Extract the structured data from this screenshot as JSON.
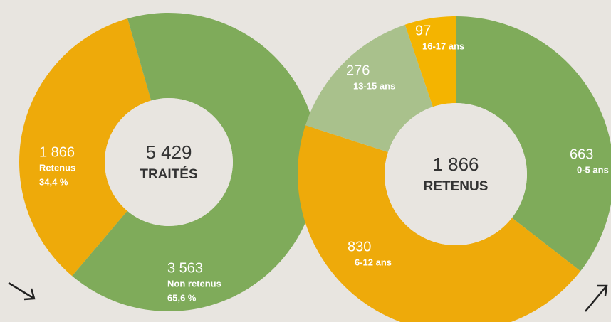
{
  "chart_data": [
    {
      "type": "donut",
      "center_value": 5429,
      "center_value_label": "5 429",
      "center_label": "TRAITÉS",
      "categories": [
        "Retenus",
        "Non retenus"
      ],
      "values": [
        1866,
        3563
      ],
      "value_labels": [
        "1 866",
        "3 563"
      ],
      "percents": [
        34.4,
        65.6
      ],
      "percent_labels": [
        "34,4 %",
        "65,6 %"
      ],
      "colors": [
        "#eeaa0a",
        "#7fab5a"
      ]
    },
    {
      "type": "donut",
      "center_value": 1866,
      "center_value_label": "1 866",
      "center_label": "RETENUS",
      "categories": [
        "0-5 ans",
        "6-12 ans",
        "13-15 ans",
        "16-17 ans"
      ],
      "values": [
        663,
        830,
        276,
        97
      ],
      "colors": [
        "#7fab5a",
        "#eeaa0a",
        "#a9c18c",
        "#f4b400"
      ]
    }
  ]
}
